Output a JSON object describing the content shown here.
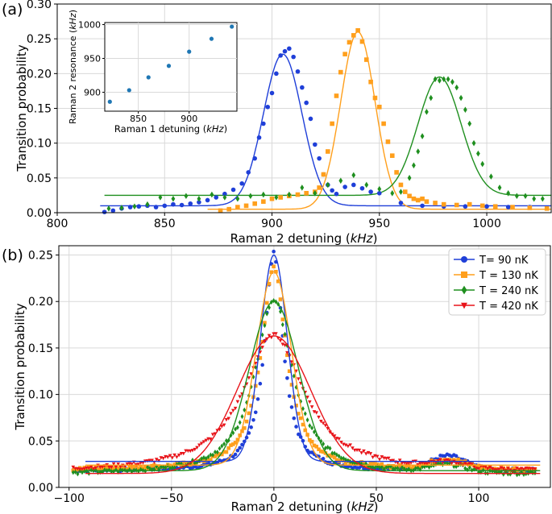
{
  "colors": {
    "blue": "#1f3fd8",
    "orange": "#ff9f1c",
    "green": "#1f8f1f",
    "red": "#e8141a",
    "inset_marker": "#1f77b4",
    "grid": "#d9d9d9",
    "axis": "#000000"
  },
  "chart_data": [
    {
      "panel_label": "(a)",
      "type": "scatter",
      "xlabel_main": "Raman 2 detuning (",
      "xlabel_unit": "kHz",
      "xlabel_close": ")",
      "ylabel": "Transition probability",
      "xlim": [
        800,
        1030
      ],
      "ylim": [
        0,
        0.3
      ],
      "xticks": [
        800,
        850,
        900,
        950,
        1000
      ],
      "xtick_labels": [
        "800",
        "850",
        "900",
        "950",
        "1000"
      ],
      "yticks": [
        0,
        0.05,
        0.1,
        0.15,
        0.2,
        0.25,
        0.3
      ],
      "ytick_labels": [
        "0.00",
        "0.05",
        "0.10",
        "0.15",
        "0.20",
        "0.25",
        "0.30"
      ],
      "grid": true,
      "series": [
        {
          "name": "blue",
          "marker": "circle",
          "color_key": "blue",
          "fit": {
            "center": 905,
            "sigma": 9,
            "amplitude": 0.218,
            "offset": 0.01,
            "x_range": [
              820,
              1030
            ]
          },
          "x": [
            822,
            826,
            830,
            834,
            838,
            842,
            846,
            850,
            854,
            858,
            862,
            866,
            870,
            874,
            878,
            882,
            886,
            889,
            892,
            894,
            896,
            898,
            900,
            902,
            904,
            906,
            908,
            910,
            912,
            914,
            916,
            918,
            920,
            922,
            924,
            926,
            928,
            930,
            934,
            938,
            942,
            946,
            950,
            960,
            970,
            980,
            990,
            1000,
            1010,
            1020
          ],
          "y": [
            0.001,
            0.003,
            0.006,
            0.008,
            0.009,
            0.01,
            0.008,
            0.01,
            0.012,
            0.011,
            0.013,
            0.015,
            0.018,
            0.022,
            0.027,
            0.033,
            0.042,
            0.058,
            0.078,
            0.108,
            0.128,
            0.152,
            0.172,
            0.2,
            0.226,
            0.232,
            0.236,
            0.224,
            0.203,
            0.18,
            0.158,
            0.135,
            0.098,
            0.078,
            0.055,
            0.04,
            0.032,
            0.027,
            0.037,
            0.04,
            0.035,
            0.03,
            0.028,
            0.014,
            0.01,
            0.009,
            0.009,
            0.009,
            0.008,
            0.008
          ]
        },
        {
          "name": "orange",
          "marker": "square",
          "color_key": "orange",
          "fit": {
            "center": 940,
            "sigma": 8,
            "amplitude": 0.255,
            "offset": 0.005,
            "x_range": [
              870,
              1030
            ]
          },
          "x": [
            876,
            880,
            884,
            888,
            892,
            896,
            900,
            904,
            908,
            912,
            916,
            920,
            922,
            924,
            926,
            928,
            930,
            932,
            934,
            936,
            938,
            940,
            942,
            944,
            946,
            948,
            950,
            952,
            954,
            956,
            958,
            960,
            962,
            964,
            966,
            968,
            970,
            972,
            976,
            980,
            986,
            992,
            998,
            1004,
            1012,
            1020,
            1028
          ],
          "y": [
            0.003,
            0.005,
            0.008,
            0.01,
            0.013,
            0.016,
            0.02,
            0.022,
            0.024,
            0.026,
            0.028,
            0.03,
            0.036,
            0.055,
            0.088,
            0.128,
            0.168,
            0.202,
            0.228,
            0.245,
            0.255,
            0.262,
            0.246,
            0.22,
            0.188,
            0.165,
            0.152,
            0.128,
            0.102,
            0.082,
            0.058,
            0.04,
            0.03,
            0.024,
            0.02,
            0.018,
            0.02,
            0.016,
            0.014,
            0.012,
            0.011,
            0.012,
            0.01,
            0.009,
            0.008,
            0.007,
            0.006
          ]
        },
        {
          "name": "green",
          "marker": "diamond",
          "color_key": "green",
          "fit": {
            "center": 978,
            "sigma": 10,
            "amplitude": 0.17,
            "offset": 0.025,
            "x_range": [
              822,
              1030
            ]
          },
          "x": [
            824,
            830,
            836,
            842,
            848,
            854,
            860,
            866,
            872,
            878,
            884,
            890,
            896,
            902,
            908,
            914,
            920,
            926,
            932,
            938,
            944,
            950,
            956,
            960,
            964,
            966,
            968,
            970,
            972,
            974,
            976,
            978,
            980,
            982,
            984,
            986,
            988,
            990,
            992,
            994,
            996,
            998,
            1002,
            1006,
            1010,
            1014,
            1018,
            1022,
            1026
          ],
          "y": [
            0.006,
            0.007,
            0.009,
            0.012,
            0.022,
            0.02,
            0.024,
            0.02,
            0.026,
            0.022,
            0.02,
            0.024,
            0.026,
            0.022,
            0.026,
            0.036,
            0.028,
            0.04,
            0.046,
            0.054,
            0.04,
            0.034,
            0.028,
            0.03,
            0.05,
            0.068,
            0.088,
            0.11,
            0.145,
            0.165,
            0.192,
            0.19,
            0.192,
            0.192,
            0.188,
            0.18,
            0.165,
            0.148,
            0.128,
            0.1,
            0.085,
            0.07,
            0.052,
            0.036,
            0.028,
            0.024,
            0.024,
            0.02,
            0.02
          ]
        }
      ],
      "inset": {
        "type": "scatter",
        "xlabel_main": "Raman 1 detuning (",
        "xlabel_unit": "kHz",
        "xlabel_close": ")",
        "ylabel_main": "Raman 2 resonance (",
        "ylabel_unit": "kHz",
        "ylabel_close": ")",
        "xlim": [
          817,
          947
        ],
        "ylim": [
          872,
          1003
        ],
        "xticks": [
          850,
          900
        ],
        "xtick_labels": [
          "850",
          "900"
        ],
        "yticks": [
          900,
          950,
          1000
        ],
        "ytick_labels": [
          "900",
          "950",
          "1000"
        ],
        "x": [
          822,
          841,
          860,
          880,
          900,
          922,
          942
        ],
        "y": [
          886,
          903,
          922,
          939,
          960,
          979,
          997
        ]
      }
    },
    {
      "panel_label": "(b)",
      "type": "scatter",
      "xlabel_main": "Raman 2 detuning (",
      "xlabel_unit": "kHz",
      "xlabel_close": ")",
      "ylabel": "Transition probability",
      "xlim": [
        -105,
        135
      ],
      "ylim": [
        0,
        0.26
      ],
      "xticks": [
        -100,
        -50,
        0,
        50,
        100
      ],
      "xtick_labels": [
        "−100",
        "−50",
        "0",
        "50",
        "100"
      ],
      "yticks": [
        0,
        0.05,
        0.1,
        0.15,
        0.2,
        0.25
      ],
      "ytick_labels": [
        "0.00",
        "0.05",
        "0.10",
        "0.15",
        "0.20",
        "0.25"
      ],
      "grid": true,
      "legend": {
        "position": "top-right",
        "entries": [
          "T= 90 nK",
          "T = 130 nK",
          "T = 240 nK",
          "T = 420 nK"
        ]
      },
      "series": [
        {
          "name": "T= 90 nK",
          "marker": "circle",
          "color_key": "blue",
          "peak": 0.252,
          "width": 5.5,
          "base": 0.018,
          "bump": 0.015,
          "fit": {
            "amplitude": 0.222,
            "sigma": 6.5,
            "offset": 0.028,
            "x_range": [
              -92,
              130
            ]
          }
        },
        {
          "name": "T = 130 nK",
          "marker": "square",
          "color_key": "orange",
          "peak": 0.236,
          "width": 7.5,
          "base": 0.019,
          "bump": 0.01,
          "fit": {
            "amplitude": 0.208,
            "sigma": 8.5,
            "offset": 0.024,
            "x_range": [
              -92,
              130
            ]
          }
        },
        {
          "name": "T = 240 nK",
          "marker": "diamond",
          "color_key": "green",
          "peak": 0.202,
          "width": 11,
          "base": 0.014,
          "bump": 0.008,
          "fit": {
            "amplitude": 0.182,
            "sigma": 12,
            "offset": 0.018,
            "x_range": [
              -92,
              130
            ]
          }
        },
        {
          "name": "T = 420 nK",
          "marker": "triangle-down",
          "color_key": "red",
          "peak": 0.164,
          "width": 18,
          "base": 0.016,
          "bump": 0.006,
          "fit": {
            "amplitude": 0.148,
            "sigma": 18,
            "offset": 0.015,
            "x_range": [
              -92,
              130
            ]
          }
        }
      ]
    }
  ]
}
